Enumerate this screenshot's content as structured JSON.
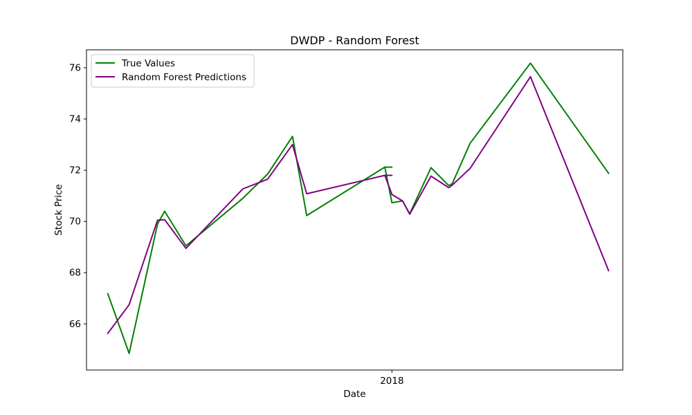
{
  "chart_data": {
    "type": "line",
    "title": "DWDP - Random Forest",
    "xlabel": "Date",
    "ylabel": "Stock Price",
    "xlim": [
      "2017-10-07",
      "2018-03-07"
    ],
    "ylim": [
      64.2,
      76.7
    ],
    "x_ticks": [
      {
        "date": "2018-01-01",
        "label": "2018"
      }
    ],
    "y_ticks": [
      {
        "value": 66,
        "label": "66"
      },
      {
        "value": 68,
        "label": "68"
      },
      {
        "value": 70,
        "label": "70"
      },
      {
        "value": 72,
        "label": "72"
      },
      {
        "value": 74,
        "label": "74"
      },
      {
        "value": 76,
        "label": "76"
      }
    ],
    "grid": false,
    "legend_position": "top-left",
    "series": [
      {
        "name": "True Values",
        "color": "#008000",
        "points": [
          [
            "2017-10-13",
            67.18
          ],
          [
            "2017-10-19",
            64.85
          ],
          [
            "2017-10-27",
            69.9
          ],
          [
            "2017-10-29",
            70.4
          ],
          [
            "2017-11-04",
            69.05
          ],
          [
            "2017-11-20",
            70.9
          ],
          [
            "2017-11-27",
            71.85
          ],
          [
            "2017-12-04",
            73.32
          ],
          [
            "2017-12-08",
            70.23
          ],
          [
            "2017-12-30",
            72.12
          ],
          [
            "2018-01-01",
            72.12
          ],
          [
            "2017-12-30",
            72.12
          ],
          [
            "2018-01-01",
            70.73
          ],
          [
            "2018-01-04",
            70.8
          ],
          [
            "2018-01-06",
            70.3
          ],
          [
            "2018-01-12",
            72.1
          ],
          [
            "2018-01-17",
            71.4
          ],
          [
            "2018-01-18",
            71.48
          ],
          [
            "2018-01-23",
            73.05
          ],
          [
            "2018-02-09",
            76.18
          ],
          [
            "2018-03-03",
            71.88
          ]
        ]
      },
      {
        "name": "Random Forest Predictions",
        "color": "#800080",
        "points": [
          [
            "2017-10-13",
            65.63
          ],
          [
            "2017-10-19",
            66.75
          ],
          [
            "2017-10-27",
            70.05
          ],
          [
            "2017-10-29",
            70.07
          ],
          [
            "2017-11-04",
            68.95
          ],
          [
            "2017-11-20",
            71.27
          ],
          [
            "2017-11-27",
            71.65
          ],
          [
            "2017-12-04",
            73.0
          ],
          [
            "2017-12-08",
            71.08
          ],
          [
            "2017-12-30",
            71.8
          ],
          [
            "2018-01-01",
            71.8
          ],
          [
            "2017-12-30",
            71.8
          ],
          [
            "2018-01-01",
            71.05
          ],
          [
            "2018-01-04",
            70.8
          ],
          [
            "2018-01-06",
            70.28
          ],
          [
            "2018-01-12",
            71.77
          ],
          [
            "2018-01-17",
            71.32
          ],
          [
            "2018-01-18",
            71.42
          ],
          [
            "2018-01-23",
            72.07
          ],
          [
            "2018-02-09",
            75.65
          ],
          [
            "2018-03-03",
            68.08
          ]
        ]
      }
    ]
  }
}
